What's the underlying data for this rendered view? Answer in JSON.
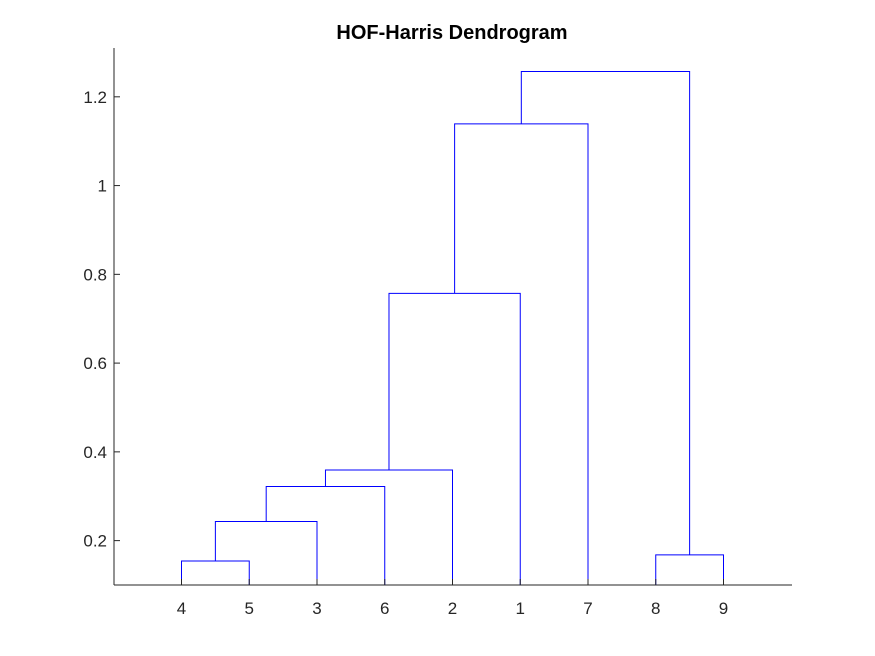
{
  "chart_data": {
    "type": "dendrogram",
    "title": "HOF-Harris Dendrogram",
    "xlabel": "",
    "ylabel": "",
    "leaf_order": [
      "4",
      "5",
      "3",
      "6",
      "2",
      "1",
      "7",
      "8",
      "9"
    ],
    "ylim": [
      0.1,
      1.31
    ],
    "yticks": [
      0.2,
      0.4,
      0.6,
      0.8,
      1,
      1.2
    ],
    "ytick_labels": [
      "0.2",
      "0.4",
      "0.6",
      "0.8",
      "1",
      "1.2"
    ],
    "line_color": "#0000ff",
    "grid": false,
    "merges": [
      {
        "left": "4",
        "right": "5",
        "height": 0.154
      },
      {
        "left": "4-5",
        "right": "3",
        "height": 0.243
      },
      {
        "left": "4-5-3",
        "right": "6",
        "height": 0.322
      },
      {
        "left": "4-5-3-6",
        "right": "2",
        "height": 0.359
      },
      {
        "left": "4-5-3-6-2",
        "right": "1",
        "height": 0.757
      },
      {
        "left": "4-5-3-6-2-1",
        "right": "7",
        "height": 1.139
      },
      {
        "left": "8",
        "right": "9",
        "height": 0.168
      },
      {
        "left": "4-5-3-6-2-1-7",
        "right": "8-9",
        "height": 1.257
      }
    ]
  }
}
